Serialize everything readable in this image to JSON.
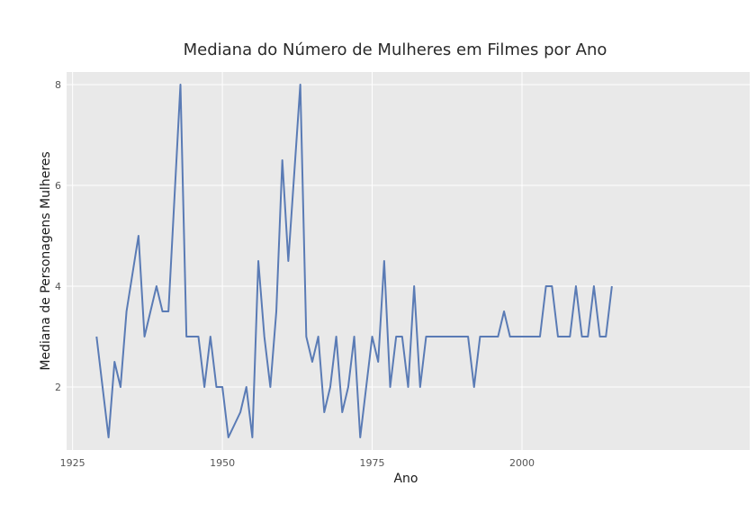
{
  "chart_data": {
    "type": "line",
    "title": "Mediana do Número de Mulheres em Filmes por Ano",
    "xlabel": "Ano",
    "ylabel": "Mediana de Personagens Mulheres",
    "xlim": [
      1924,
      2038
    ],
    "ylim": [
      0.75,
      8.25
    ],
    "grid": true,
    "x_ticks": [
      1925,
      1950,
      1975,
      2000
    ],
    "y_ticks": [
      2,
      4,
      6,
      8
    ],
    "x_tick_labels": [
      "1925",
      "1950",
      "1975",
      "2000"
    ],
    "y_tick_labels": [
      "2",
      "4",
      "6",
      "8"
    ],
    "colors": {
      "line": "#5a7bb5",
      "plot_bg": "#e9e9e9",
      "grid": "#ffffff"
    },
    "series": [
      {
        "x": [
          1929,
          1930,
          1931,
          1932,
          1933,
          1934,
          1935,
          1936,
          1937,
          1938,
          1939,
          1940,
          1941,
          1942,
          1943,
          1944,
          1945,
          1946,
          1947,
          1948,
          1949,
          1950,
          1951,
          1952,
          1953,
          1954,
          1955,
          1956,
          1957,
          1958,
          1959,
          1960,
          1961,
          1962,
          1963,
          1964,
          1965,
          1966,
          1967,
          1968,
          1969,
          1970,
          1971,
          1972,
          1973,
          1974,
          1975,
          1976,
          1977,
          1978,
          1979,
          1980,
          1981,
          1982,
          1983,
          1984,
          1985,
          1986,
          1987,
          1988,
          1989,
          1990,
          1991,
          1992,
          1993,
          1994,
          1995,
          1996,
          1997,
          1998,
          1999,
          2000,
          2001,
          2002,
          2003,
          2004,
          2005,
          2006,
          2007,
          2008,
          2009,
          2010,
          2011,
          2012,
          2013,
          2014,
          2015
        ],
        "y": [
          3,
          2,
          1,
          2.5,
          2,
          3.5,
          4.25,
          5,
          3,
          3.5,
          4,
          3.5,
          3.5,
          5.75,
          8,
          3,
          3,
          3,
          2,
          3,
          2,
          2,
          1,
          1.25,
          1.5,
          2,
          1,
          4.5,
          3,
          2,
          3.5,
          6.5,
          4.5,
          6.25,
          8,
          3,
          2.5,
          3,
          1.5,
          2,
          3,
          1.5,
          2,
          3,
          1,
          2,
          3,
          2.5,
          4.5,
          2,
          3,
          3,
          2,
          4,
          2,
          3,
          3,
          3,
          3,
          3,
          3,
          3,
          3,
          2,
          3,
          3,
          3,
          3,
          3.5,
          3,
          3,
          3,
          3,
          3,
          3,
          4,
          4,
          3,
          3,
          3,
          4,
          3,
          3,
          4,
          3,
          3,
          4
        ]
      }
    ]
  }
}
